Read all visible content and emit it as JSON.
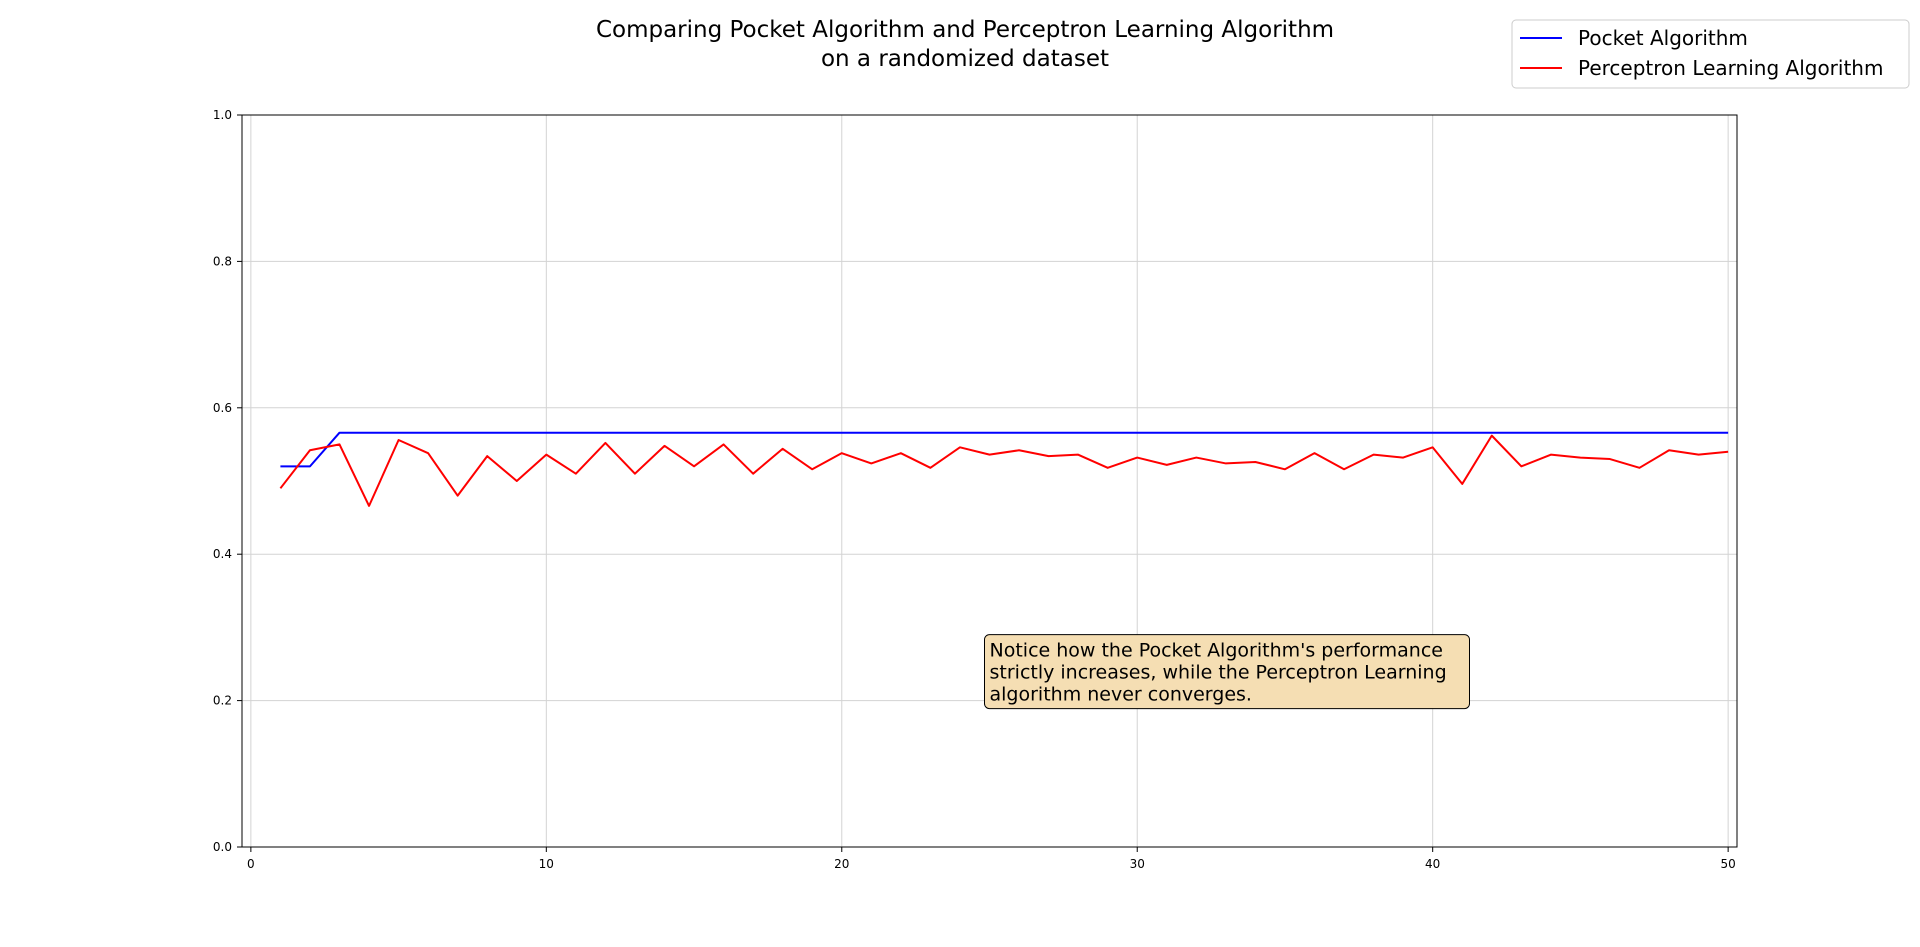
{
  "chart_data": {
    "type": "line",
    "title_lines": [
      "Comparing Pocket Algorithm and Perceptron Learning Algorithm",
      "on a randomized dataset"
    ],
    "xlabel": "",
    "ylabel": "",
    "xlim": [
      -0.3,
      50.3
    ],
    "ylim": [
      0.0,
      1.0
    ],
    "xticks": [
      0,
      10,
      20,
      30,
      40,
      50
    ],
    "yticks": [
      0.0,
      0.2,
      0.4,
      0.6,
      0.8,
      1.0
    ],
    "xtick_labels": [
      "0",
      "10",
      "20",
      "30",
      "40",
      "50"
    ],
    "ytick_labels": [
      "0.0",
      "0.2",
      "0.4",
      "0.6",
      "0.8",
      "1.0"
    ],
    "grid": true,
    "legend_position": "top-right",
    "x": [
      1,
      2,
      3,
      4,
      5,
      6,
      7,
      8,
      9,
      10,
      11,
      12,
      13,
      14,
      15,
      16,
      17,
      18,
      19,
      20,
      21,
      22,
      23,
      24,
      25,
      26,
      27,
      28,
      29,
      30,
      31,
      32,
      33,
      34,
      35,
      36,
      37,
      38,
      39,
      40,
      41,
      42,
      43,
      44,
      45,
      46,
      47,
      48,
      49,
      50
    ],
    "series": [
      {
        "name": "Pocket Algorithm",
        "color": "#0000ff",
        "values": [
          0.52,
          0.52,
          0.566,
          0.566,
          0.566,
          0.566,
          0.566,
          0.566,
          0.566,
          0.566,
          0.566,
          0.566,
          0.566,
          0.566,
          0.566,
          0.566,
          0.566,
          0.566,
          0.566,
          0.566,
          0.566,
          0.566,
          0.566,
          0.566,
          0.566,
          0.566,
          0.566,
          0.566,
          0.566,
          0.566,
          0.566,
          0.566,
          0.566,
          0.566,
          0.566,
          0.566,
          0.566,
          0.566,
          0.566,
          0.566,
          0.566,
          0.566,
          0.566,
          0.566,
          0.566,
          0.566,
          0.566,
          0.566,
          0.566,
          0.566
        ]
      },
      {
        "name": "Perceptron Learning Algorithm",
        "color": "#ff0000",
        "values": [
          0.49,
          0.542,
          0.55,
          0.466,
          0.556,
          0.538,
          0.48,
          0.534,
          0.5,
          0.536,
          0.51,
          0.552,
          0.51,
          0.548,
          0.52,
          0.55,
          0.51,
          0.544,
          0.516,
          0.538,
          0.524,
          0.538,
          0.518,
          0.546,
          0.536,
          0.542,
          0.534,
          0.536,
          0.518,
          0.532,
          0.522,
          0.532,
          0.524,
          0.526,
          0.516,
          0.538,
          0.516,
          0.536,
          0.532,
          0.546,
          0.496,
          0.562,
          0.52,
          0.536,
          0.532,
          0.53,
          0.518,
          0.542,
          0.536,
          0.54
        ]
      }
    ],
    "annotation": {
      "lines": [
        "Notice how the Pocket Algorithm's performance",
        "strictly increases, while the Perceptron Learning",
        "algorithm never converges."
      ],
      "x": 25,
      "y": 0.2,
      "background": "#f5deb3"
    }
  }
}
